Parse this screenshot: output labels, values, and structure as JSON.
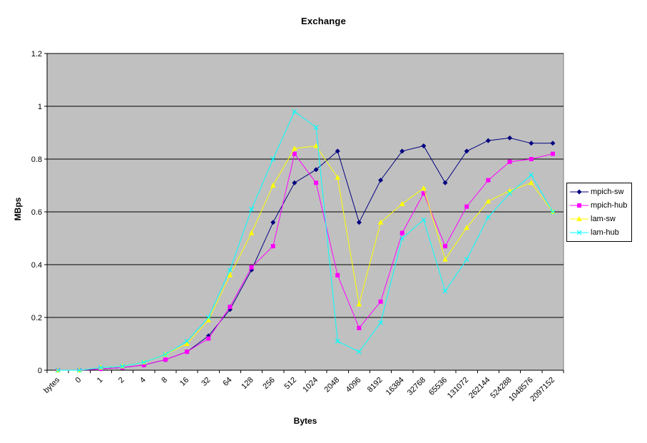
{
  "chart_data": {
    "type": "line",
    "title": "Exchange",
    "xlabel": "Bytes",
    "ylabel": "MBps",
    "ylim": [
      0,
      1.2
    ],
    "yticks": [
      0,
      0.2,
      0.4,
      0.6,
      0.8,
      1,
      1.2
    ],
    "grid": true,
    "legend_position": "right",
    "plot_bg": "#c0c0c0",
    "plot_border": "#808080",
    "gridline_color": "#000000",
    "axis_color": "#000000",
    "categories": [
      "bytes",
      "0",
      "1",
      "2",
      "4",
      "8",
      "16",
      "32",
      "64",
      "128",
      "256",
      "512",
      "1024",
      "2048",
      "4096",
      "8192",
      "16384",
      "32768",
      "65536",
      "131072",
      "262144",
      "524288",
      "1048576",
      "2097152"
    ],
    "series": [
      {
        "name": "mpich-sw",
        "color": "#000080",
        "marker": "diamond",
        "values": [
          0,
          0,
          0.005,
          0.01,
          0.02,
          0.04,
          0.07,
          0.13,
          0.23,
          0.38,
          0.56,
          0.71,
          0.76,
          0.83,
          0.56,
          0.72,
          0.83,
          0.85,
          0.71,
          0.83,
          0.87,
          0.88,
          0.86,
          0.86
        ]
      },
      {
        "name": "mpich-hub",
        "color": "#ff00ff",
        "marker": "square",
        "values": [
          0,
          0,
          0.005,
          0.01,
          0.02,
          0.04,
          0.07,
          0.12,
          0.24,
          0.39,
          0.47,
          0.82,
          0.71,
          0.36,
          0.16,
          0.26,
          0.52,
          0.67,
          0.47,
          0.62,
          0.72,
          0.79,
          0.8,
          0.82
        ]
      },
      {
        "name": "lam-sw",
        "color": "#ffff00",
        "marker": "triangle",
        "values": [
          0,
          0,
          0.01,
          0.015,
          0.03,
          0.06,
          0.1,
          0.19,
          0.36,
          0.52,
          0.7,
          0.84,
          0.85,
          0.73,
          0.25,
          0.56,
          0.63,
          0.69,
          0.42,
          0.54,
          0.64,
          0.68,
          0.71,
          0.6
        ]
      },
      {
        "name": "lam-hub",
        "color": "#00ffff",
        "marker": "x",
        "values": [
          0,
          0,
          0.01,
          0.015,
          0.03,
          0.06,
          0.11,
          0.2,
          0.38,
          0.61,
          0.8,
          0.98,
          0.92,
          0.11,
          0.07,
          0.18,
          0.5,
          0.57,
          0.3,
          0.42,
          0.58,
          0.67,
          0.74,
          0.6
        ]
      }
    ]
  }
}
